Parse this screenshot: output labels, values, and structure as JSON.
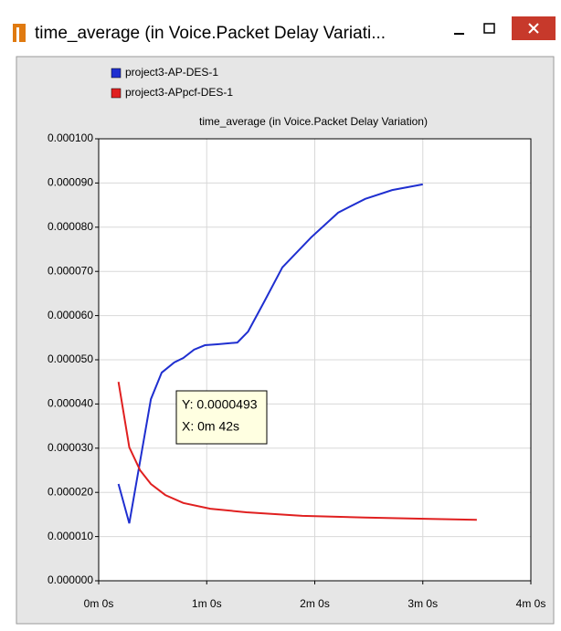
{
  "window": {
    "title": "time_average (in Voice.Packet Delay Variati..."
  },
  "chart_data": {
    "type": "line",
    "title": "time_average (in Voice.Packet Delay Variation)",
    "xlim": [
      0,
      240
    ],
    "xticks": [
      {
        "value": 0,
        "label": "0m 0s"
      },
      {
        "value": 60,
        "label": "1m 0s"
      },
      {
        "value": 120,
        "label": "2m 0s"
      },
      {
        "value": 180,
        "label": "3m 0s"
      },
      {
        "value": 240,
        "label": "4m 0s"
      }
    ],
    "ylim": [
      0,
      0.0001
    ],
    "yticks": [
      {
        "value": 0,
        "label": "0.000000"
      },
      {
        "value": 1e-05,
        "label": "0.000010"
      },
      {
        "value": 2e-05,
        "label": "0.000020"
      },
      {
        "value": 3e-05,
        "label": "0.000030"
      },
      {
        "value": 4e-05,
        "label": "0.000040"
      },
      {
        "value": 5e-05,
        "label": "0.000050"
      },
      {
        "value": 6e-05,
        "label": "0.000060"
      },
      {
        "value": 7e-05,
        "label": "0.000070"
      },
      {
        "value": 8e-05,
        "label": "0.000080"
      },
      {
        "value": 9e-05,
        "label": "0.000090"
      },
      {
        "value": 0.0001,
        "label": "0.000100"
      }
    ],
    "grid": true,
    "series": [
      {
        "name": "project3-AP-DES-1",
        "color": "#1f2fd0",
        "x": [
          11,
          17,
          29,
          35,
          42,
          47,
          53,
          59,
          66,
          77,
          83,
          92,
          102,
          118,
          133,
          148,
          163,
          180
        ],
        "values": [
          2.19e-05,
          1.3e-05,
          4.11e-05,
          4.71e-05,
          4.94e-05,
          5.04e-05,
          5.23e-05,
          5.33e-05,
          5.35e-05,
          5.39e-05,
          5.64e-05,
          6.32e-05,
          7.09e-05,
          7.77e-05,
          8.33e-05,
          8.64e-05,
          8.84e-05,
          8.97e-05
        ]
      },
      {
        "name": "project3-APpcf-DES-1",
        "color": "#e02020",
        "x": [
          11,
          17,
          23,
          29,
          37,
          47,
          62,
          82,
          113,
          148,
          184,
          210
        ],
        "values": [
          4.5e-05,
          3.02e-05,
          2.5e-05,
          2.19e-05,
          1.94e-05,
          1.76e-05,
          1.63e-05,
          1.55e-05,
          1.47e-05,
          1.43e-05,
          1.4e-05,
          1.38e-05
        ]
      }
    ],
    "tooltip": [
      "Y: 0.0000493",
      "X: 0m 42s"
    ]
  }
}
